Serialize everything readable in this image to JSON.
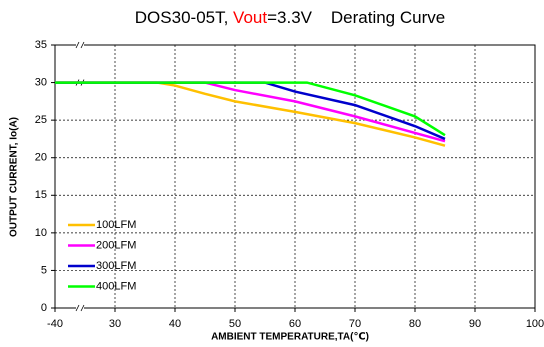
{
  "chart_data": {
    "type": "line",
    "title_parts": [
      {
        "text": "DOS30-05T, ",
        "color": "#000000"
      },
      {
        "text": "Vout",
        "color": "#ff0000"
      },
      {
        "text": "=3.3V    Derating Curve",
        "color": "#000000"
      }
    ],
    "x_label": "AMBIENT TEMPERATURE,TA(℃)",
    "y_label": "OUTPUT CURRENT, Io(A)",
    "x_break": [
      -40,
      20
    ],
    "xlim": [
      -40,
      100
    ],
    "xticks": [
      -40,
      30,
      40,
      50,
      60,
      70,
      80,
      90,
      100
    ],
    "ylim": [
      0,
      35
    ],
    "yticks": [
      0,
      5,
      10,
      15,
      20,
      25,
      30,
      35
    ],
    "grid": true,
    "legend": "lower left",
    "series": [
      {
        "name": "100LFM",
        "color": "#ffc000",
        "x": [
          -40,
          37,
          40,
          45,
          50,
          60,
          70,
          80,
          85
        ],
        "values": [
          30,
          30,
          29.6,
          28.5,
          27.5,
          26.1,
          24.6,
          22.7,
          21.6
        ]
      },
      {
        "name": "200LFM",
        "color": "#ff00ff",
        "x": [
          -40,
          45,
          50,
          60,
          70,
          80,
          85
        ],
        "values": [
          30,
          30,
          29,
          27.5,
          25.5,
          23.3,
          22.2
        ]
      },
      {
        "name": "300LFM",
        "color": "#0000cc",
        "x": [
          -40,
          55,
          60,
          70,
          80,
          85
        ],
        "values": [
          30,
          30,
          28.8,
          27,
          24.2,
          22.5
        ]
      },
      {
        "name": "400LFM",
        "color": "#00ff00",
        "x": [
          -40,
          62,
          70,
          80,
          85
        ],
        "values": [
          30,
          30,
          28.3,
          25.5,
          23
        ]
      }
    ]
  }
}
